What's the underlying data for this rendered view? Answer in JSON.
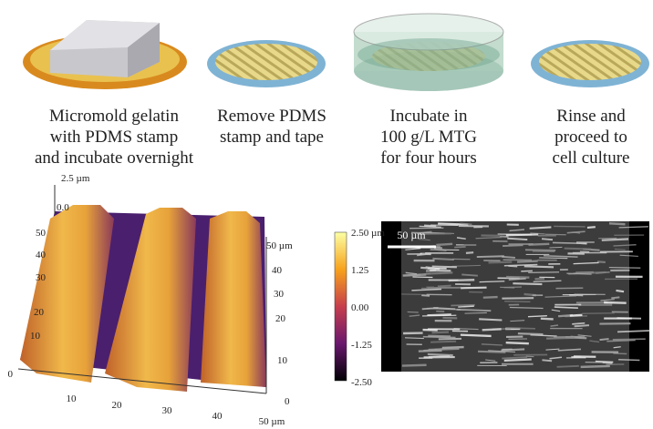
{
  "steps": [
    {
      "lines": [
        "Micromold gelatin",
        "with PDMS stamp",
        "and incubate overnight"
      ]
    },
    {
      "lines": [
        "Remove PDMS",
        "stamp and tape"
      ]
    },
    {
      "lines": [
        "Incubate in",
        "100 g/L MTG",
        "for four hours"
      ]
    },
    {
      "lines": [
        "Rinse and",
        "proceed to",
        "cell culture"
      ]
    }
  ],
  "afm": {
    "z_axis": [
      "2.5 µm",
      "0.0"
    ],
    "y_axis": [
      "50",
      "40",
      "30",
      "20",
      "10",
      "0"
    ],
    "x_axis": [
      "10",
      "20",
      "30",
      "40",
      "50 µm"
    ],
    "right_axis": [
      "50 µm",
      "40",
      "30",
      "20",
      "10",
      "0"
    ],
    "colorbar": [
      "2.50 µm",
      "1.25",
      "0.00",
      "-1.25",
      "-2.50"
    ]
  },
  "micrograph": {
    "scale_bar": "50 µm"
  }
}
